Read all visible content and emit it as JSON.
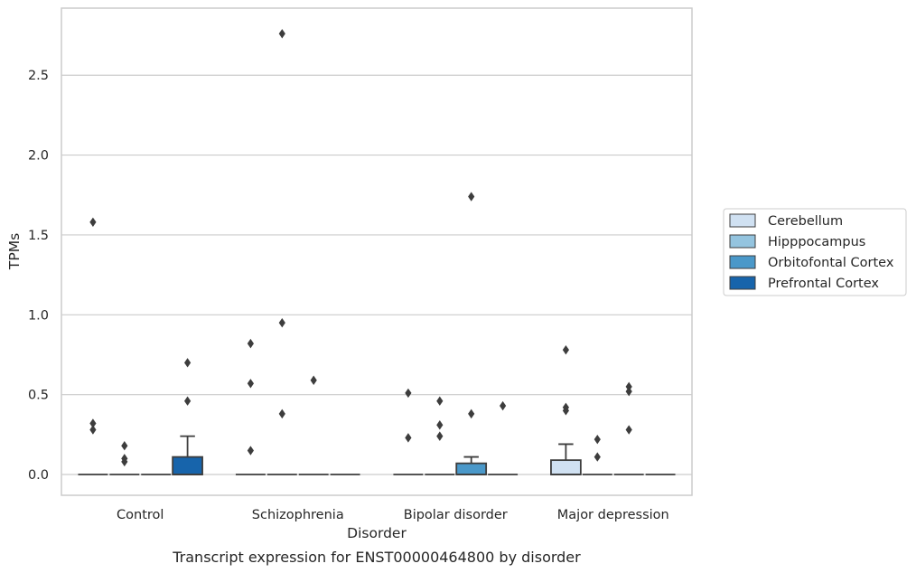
{
  "chart_data": {
    "type": "box",
    "title": "",
    "caption": "Transcript expression for ENST00000464800 by disorder",
    "xlabel": "Disorder",
    "ylabel": "TPMs",
    "ylim": [
      -0.13,
      2.92
    ],
    "yticks": [
      0.0,
      0.5,
      1.0,
      1.5,
      2.0,
      2.5
    ],
    "ytick_labels": [
      "0.0",
      "0.5",
      "1.0",
      "1.5",
      "2.0",
      "2.5"
    ],
    "categories": [
      "Control",
      "Schizophrenia",
      "Bipolar disorder",
      "Major depression"
    ],
    "grid": "horizontal",
    "legend_position": "right",
    "series": [
      {
        "name": "Cerebellum",
        "color": "#d0e1f2",
        "boxes": [
          {
            "q1": 0,
            "median": 0,
            "q3": 0,
            "whisker_low": 0,
            "whisker_high": 0,
            "outliers": [
              1.58,
              0.32,
              0.28
            ]
          },
          {
            "q1": 0,
            "median": 0,
            "q3": 0,
            "whisker_low": 0,
            "whisker_high": 0,
            "outliers": [
              0.82,
              0.57,
              0.15
            ]
          },
          {
            "q1": 0,
            "median": 0,
            "q3": 0,
            "whisker_low": 0,
            "whisker_high": 0,
            "outliers": [
              0.51,
              0.23
            ]
          },
          {
            "q1": 0,
            "median": 0,
            "q3": 0.09,
            "whisker_low": 0,
            "whisker_high": 0.19,
            "outliers": [
              0.78,
              0.42,
              0.4
            ]
          }
        ]
      },
      {
        "name": "Hipppocampus",
        "color": "#94c4df",
        "boxes": [
          {
            "q1": 0,
            "median": 0,
            "q3": 0,
            "whisker_low": 0,
            "whisker_high": 0,
            "outliers": [
              0.18,
              0.1,
              0.08
            ]
          },
          {
            "q1": 0,
            "median": 0,
            "q3": 0,
            "whisker_low": 0,
            "whisker_high": 0,
            "outliers": [
              2.76,
              0.95,
              0.38
            ]
          },
          {
            "q1": 0,
            "median": 0,
            "q3": 0,
            "whisker_low": 0,
            "whisker_high": 0,
            "outliers": [
              0.46,
              0.31,
              0.24
            ]
          },
          {
            "q1": 0,
            "median": 0,
            "q3": 0,
            "whisker_low": 0,
            "whisker_high": 0,
            "outliers": [
              0.22,
              0.11
            ]
          }
        ]
      },
      {
        "name": "Orbitofontal Cortex",
        "color": "#4a98c9",
        "boxes": [
          {
            "q1": 0,
            "median": 0,
            "q3": 0,
            "whisker_low": 0,
            "whisker_high": 0,
            "outliers": []
          },
          {
            "q1": 0,
            "median": 0,
            "q3": 0,
            "whisker_low": 0,
            "whisker_high": 0,
            "outliers": [
              0.59
            ]
          },
          {
            "q1": 0,
            "median": 0,
            "q3": 0.07,
            "whisker_low": 0,
            "whisker_high": 0.11,
            "outliers": [
              1.74,
              0.38
            ]
          },
          {
            "q1": 0,
            "median": 0,
            "q3": 0,
            "whisker_low": 0,
            "whisker_high": 0,
            "outliers": [
              0.55,
              0.52,
              0.28
            ]
          }
        ]
      },
      {
        "name": "Prefrontal Cortex",
        "color": "#1764ab",
        "boxes": [
          {
            "q1": 0,
            "median": 0,
            "q3": 0.11,
            "whisker_low": 0,
            "whisker_high": 0.24,
            "outliers": [
              0.7,
              0.46
            ]
          },
          {
            "q1": 0,
            "median": 0,
            "q3": 0,
            "whisker_low": 0,
            "whisker_high": 0,
            "outliers": []
          },
          {
            "q1": 0,
            "median": 0,
            "q3": 0,
            "whisker_low": 0,
            "whisker_high": 0,
            "outliers": [
              0.43
            ]
          },
          {
            "q1": 0,
            "median": 0,
            "q3": 0,
            "whisker_low": 0,
            "whisker_high": 0,
            "outliers": []
          }
        ]
      }
    ]
  }
}
